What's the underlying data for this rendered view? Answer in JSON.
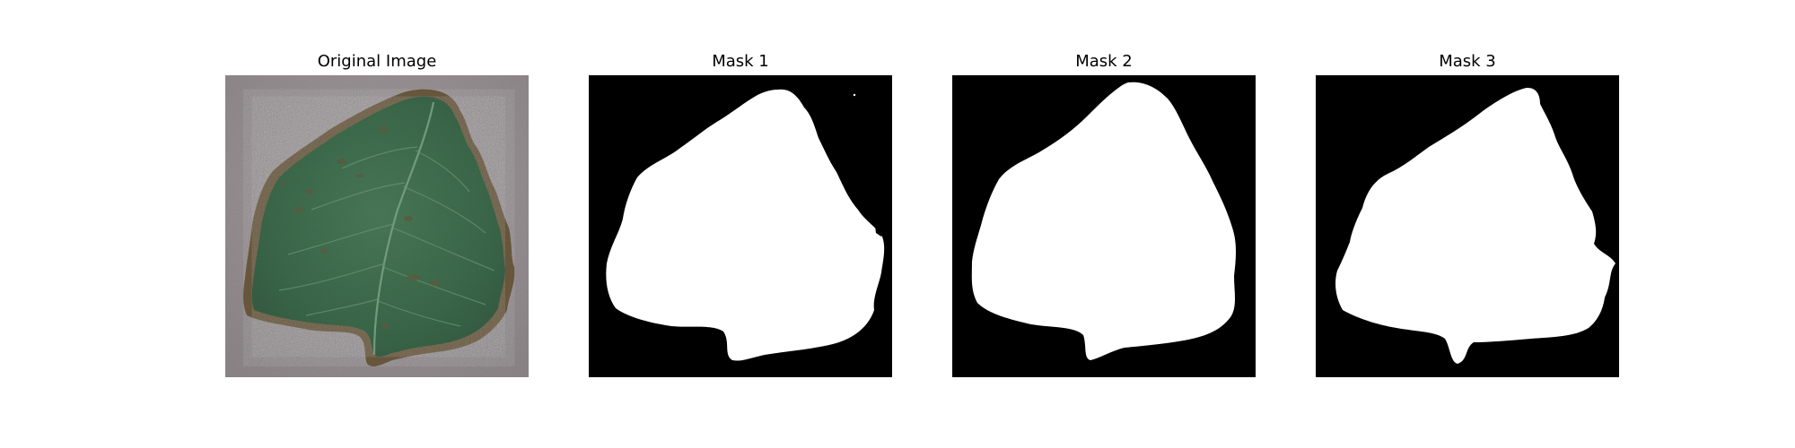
{
  "figure": {
    "panels": [
      {
        "title": "Original Image"
      },
      {
        "title": "Mask 1"
      },
      {
        "title": "Mask 2"
      },
      {
        "title": "Mask 3"
      }
    ]
  },
  "colors": {
    "background": "#ffffff",
    "mask_foreground": "#ffffff",
    "mask_background": "#000000",
    "leaf_green": "#3f6e4e",
    "leaf_edge_brown": "#6b5a3e",
    "paper_gray": "#9a9395"
  }
}
